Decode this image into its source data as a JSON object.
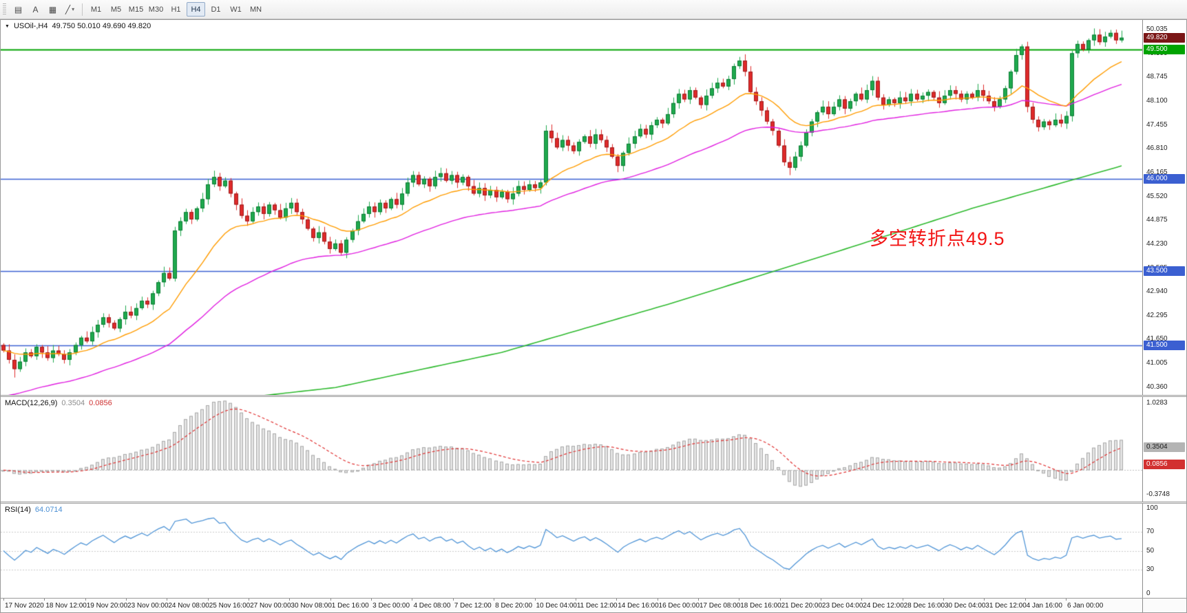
{
  "toolbar": {
    "tools": [
      {
        "id": "chart-properties-tool",
        "glyph": "▤",
        "dropdown": false
      },
      {
        "id": "text-annotate-tool",
        "glyph": "A",
        "dropdown": false
      },
      {
        "id": "objects-list-tool",
        "glyph": "▦",
        "dropdown": false
      },
      {
        "id": "line-studies-tool",
        "glyph": "╱",
        "dropdown": true
      }
    ],
    "timeframes": [
      "M1",
      "M5",
      "M15",
      "M30",
      "H1",
      "H4",
      "D1",
      "W1",
      "MN"
    ],
    "active_timeframe": "H4"
  },
  "main_chart": {
    "symbol_label": "USOil-,H4",
    "ohlc_label": "49.750 50.010 49.690 49.820",
    "annotation": "多空转折点49.5"
  },
  "macd_panel": {
    "title": "MACD(12,26,9)",
    "value_main": "0.3504",
    "value_signal": "0.0856",
    "scale_top": "1.0283",
    "scale_bottom": "-0.3748"
  },
  "rsi_panel": {
    "title": "RSI(14)",
    "value": "64.0714",
    "scale": [
      "100",
      "70",
      "50",
      "30",
      "0"
    ]
  },
  "price_axis": {
    "ticks": [
      "50.035",
      "49.390",
      "48.745",
      "48.100",
      "47.455",
      "46.810",
      "46.165",
      "45.520",
      "44.875",
      "44.230",
      "43.585",
      "42.940",
      "42.295",
      "41.650",
      "41.005",
      "40.360"
    ],
    "tags": [
      {
        "label": "49.820",
        "value": 49.82,
        "bg": "#7a1616",
        "name": "current-price-tag"
      },
      {
        "label": "49.500",
        "value": 49.5,
        "bg": "#00a300",
        "name": "level-tag-49-500"
      },
      {
        "label": "46.000",
        "value": 46.0,
        "bg": "#3b5fd1",
        "name": "level-tag-46-000"
      },
      {
        "label": "43.500",
        "value": 43.5,
        "bg": "#3b5fd1",
        "name": "level-tag-43-500"
      },
      {
        "label": "41.500",
        "value": 41.5,
        "bg": "#3b5fd1",
        "name": "level-tag-41-500"
      }
    ]
  },
  "time_axis": {
    "labels": [
      "17 Nov 2020",
      "18 Nov 12:00",
      "19 Nov 20:00",
      "23 Nov 00:00",
      "24 Nov 08:00",
      "25 Nov 16:00",
      "27 Nov 00:00",
      "30 Nov 08:00",
      "1 Dec 16:00",
      "3 Dec 00:00",
      "4 Dec 08:00",
      "7 Dec 12:00",
      "8 Dec 20:00",
      "10 Dec 04:00",
      "11 Dec 12:00",
      "14 Dec 16:00",
      "16 Dec 00:00",
      "17 Dec 08:00",
      "18 Dec 16:00",
      "21 Dec 20:00",
      "23 Dec 04:00",
      "24 Dec 12:00",
      "28 Dec 16:00",
      "30 Dec 04:00",
      "31 Dec 12:00",
      "4 Jan 16:00",
      "6 Jan 00:00"
    ]
  },
  "chart_data": {
    "type": "candlestick",
    "symbol": "USOil-",
    "timeframe": "H4",
    "title": "USOil-,H4 49.750 50.010 49.690 49.820",
    "ylim": [
      40.15,
      50.3
    ],
    "open_first": 41.5,
    "closes": [
      41.35,
      41.1,
      40.85,
      41.05,
      41.3,
      41.2,
      41.45,
      41.3,
      41.15,
      41.35,
      41.25,
      41.1,
      41.3,
      41.5,
      41.7,
      41.6,
      41.85,
      42.05,
      42.25,
      42.1,
      41.95,
      42.2,
      42.4,
      42.3,
      42.5,
      42.7,
      42.6,
      42.9,
      43.2,
      43.45,
      43.3,
      44.6,
      44.85,
      45.1,
      44.9,
      45.2,
      45.45,
      45.85,
      46.05,
      45.8,
      45.95,
      45.6,
      45.3,
      45.0,
      44.85,
      45.1,
      45.25,
      45.05,
      45.3,
      45.15,
      44.95,
      45.2,
      45.35,
      45.1,
      44.9,
      44.65,
      44.4,
      44.55,
      44.3,
      44.1,
      44.25,
      44.0,
      44.35,
      44.6,
      44.85,
      45.05,
      45.25,
      45.1,
      45.35,
      45.2,
      45.45,
      45.3,
      45.6,
      45.9,
      46.1,
      45.85,
      46.0,
      45.8,
      46.05,
      46.15,
      45.95,
      46.1,
      45.9,
      46.05,
      45.8,
      45.6,
      45.75,
      45.55,
      45.7,
      45.5,
      45.65,
      45.45,
      45.6,
      45.8,
      45.7,
      45.85,
      45.75,
      45.9,
      47.3,
      47.1,
      46.85,
      47.05,
      46.9,
      46.75,
      47.0,
      47.15,
      46.95,
      47.2,
      47.05,
      46.85,
      46.6,
      46.35,
      46.7,
      46.95,
      47.15,
      47.35,
      47.2,
      47.45,
      47.6,
      47.5,
      47.75,
      48.05,
      48.3,
      48.15,
      48.4,
      48.2,
      48.0,
      48.25,
      48.45,
      48.6,
      48.5,
      48.7,
      49.05,
      49.2,
      48.9,
      48.35,
      48.1,
      47.85,
      47.55,
      47.3,
      46.9,
      46.45,
      46.3,
      46.6,
      46.9,
      47.25,
      47.55,
      47.8,
      47.95,
      47.75,
      47.95,
      48.15,
      47.9,
      48.1,
      48.3,
      48.15,
      48.4,
      48.65,
      48.2,
      48.0,
      48.15,
      48.05,
      48.2,
      48.1,
      48.3,
      48.15,
      48.25,
      48.35,
      48.2,
      48.05,
      48.25,
      48.4,
      48.3,
      48.15,
      48.3,
      48.2,
      48.4,
      48.25,
      48.1,
      47.95,
      48.15,
      48.45,
      48.9,
      49.35,
      49.58,
      47.95,
      47.6,
      47.4,
      47.55,
      47.45,
      47.6,
      47.5,
      47.7,
      49.4,
      49.65,
      49.5,
      49.75,
      49.9,
      49.7,
      49.85,
      49.95,
      49.75,
      49.82
    ],
    "wick_overrides": {
      "2": {
        "l": 40.62
      },
      "29": {
        "h": 43.62
      },
      "31": {
        "h": 44.7,
        "l": 43.22
      },
      "38": {
        "h": 46.22
      },
      "61": {
        "l": 43.93
      },
      "98": {
        "h": 47.45,
        "l": 45.82
      },
      "111": {
        "l": 46.18
      },
      "133": {
        "h": 49.3
      },
      "142": {
        "l": 46.1
      },
      "184": {
        "h": 49.64
      },
      "185": {
        "l": 47.8
      },
      "187": {
        "l": 47.28
      },
      "193": {
        "h": 49.47,
        "l": 47.55
      },
      "200": {
        "h": 50.03
      },
      "202": {
        "o": 49.75,
        "h": 50.01,
        "l": 49.69,
        "c": 49.82
      }
    },
    "hlines": [
      {
        "price": 49.5,
        "color": "#00a300",
        "width": 2
      },
      {
        "price": 46.0,
        "color": "#3b5fd1",
        "width": 1.5
      },
      {
        "price": 43.5,
        "color": "#3b5fd1",
        "width": 1.5
      },
      {
        "price": 41.5,
        "color": "#3b5fd1",
        "width": 1.5
      }
    ],
    "ma_fast": {
      "period": 18,
      "color": "#ff9c00"
    },
    "ma_mid": {
      "period": 50,
      "seed": 40.05,
      "color": "#e01fe0"
    },
    "ma_slow": {
      "color": "#2db92d",
      "anchors": [
        [
          0,
          39.55
        ],
        [
          30,
          39.85
        ],
        [
          60,
          40.35
        ],
        [
          90,
          41.3
        ],
        [
          120,
          42.6
        ],
        [
          150,
          44.0
        ],
        [
          175,
          45.2
        ],
        [
          195,
          46.05
        ],
        [
          202,
          46.35
        ]
      ]
    },
    "macd": {
      "fast": 12,
      "slow": 26,
      "signal": 9,
      "ylim": [
        -0.48,
        1.12
      ]
    },
    "rsi": {
      "period": 14,
      "ylim": [
        0,
        100
      ],
      "levels": [
        70,
        50,
        30
      ]
    }
  },
  "colors": {
    "bull": "#1fa94e",
    "bull_border": "#0c7c34",
    "bear": "#df2a2a",
    "bear_border": "#9c1c1c",
    "macd_hist_fill": "#e3e3e3",
    "macd_hist_stroke": "#a9a9a9",
    "macd_signal": "#e03030",
    "macd_tag_main_bg": "#b4b4b4",
    "macd_tag_signal_bg": "#d23030",
    "rsi_line": "#4f94d6",
    "level_dotted": "#c9c9c9"
  }
}
